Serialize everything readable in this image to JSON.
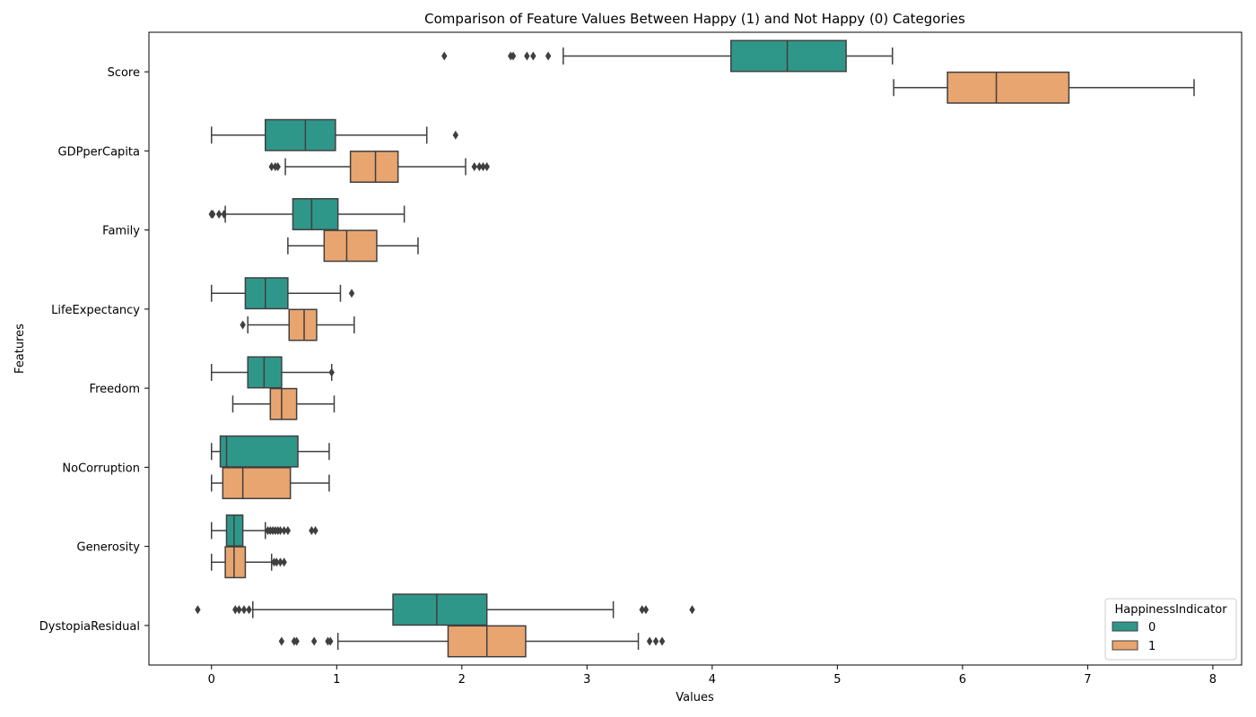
{
  "chart_data": {
    "type": "box",
    "orientation": "horizontal",
    "title": "Comparison of Feature Values Between Happy (1) and Not Happy (0) Categories",
    "xlabel": "Values",
    "ylabel": "Features",
    "xlim": [
      -0.5,
      8.23
    ],
    "xticks": [
      0,
      1,
      2,
      3,
      4,
      5,
      6,
      7,
      8
    ],
    "grid": false,
    "legend": {
      "title": "HappinessIndicator",
      "placement": "bottom-right",
      "entries": [
        "0",
        "1"
      ]
    },
    "colors": {
      "0": "#2f978a",
      "1": "#e9a56f",
      "line": "#3f3f3f"
    },
    "categories": [
      "Score",
      "GDPperCapita",
      "Family",
      "LifeExpectancy",
      "Freedom",
      "NoCorruption",
      "Generosity",
      "DystopiaResidual"
    ],
    "series": [
      {
        "name": "0",
        "boxes": [
          {
            "whislo": 2.81,
            "q1": 4.15,
            "med": 4.6,
            "q3": 5.07,
            "whishi": 5.44,
            "fliers": [
              1.86,
              2.39,
              2.41,
              2.52,
              2.57,
              2.69
            ]
          },
          {
            "whislo": 0.0,
            "q1": 0.43,
            "med": 0.75,
            "q3": 0.99,
            "whishi": 1.72,
            "fliers": [
              1.95
            ]
          },
          {
            "whislo": 0.11,
            "q1": 0.65,
            "med": 0.8,
            "q3": 1.01,
            "whishi": 1.54,
            "fliers": [
              0.0,
              0.01,
              0.06,
              0.1
            ]
          },
          {
            "whislo": 0.0,
            "q1": 0.27,
            "med": 0.43,
            "q3": 0.61,
            "whishi": 1.03,
            "fliers": [
              1.12
            ]
          },
          {
            "whislo": 0.0,
            "q1": 0.29,
            "med": 0.42,
            "q3": 0.56,
            "whishi": 0.96,
            "fliers": [
              0.96
            ]
          },
          {
            "whislo": 0.0,
            "q1": 0.07,
            "med": 0.12,
            "q3": 0.69,
            "whishi": 0.94,
            "fliers": []
          },
          {
            "whislo": 0.0,
            "q1": 0.12,
            "med": 0.18,
            "q3": 0.25,
            "whishi": 0.43,
            "fliers": [
              0.45,
              0.47,
              0.49,
              0.51,
              0.53,
              0.55,
              0.58,
              0.61,
              0.8,
              0.83
            ]
          },
          {
            "whislo": 0.33,
            "q1": 1.45,
            "med": 1.8,
            "q3": 2.2,
            "whishi": 3.21,
            "fliers": [
              -0.11,
              0.19,
              0.22,
              0.26,
              0.3,
              3.44,
              3.47,
              3.84
            ]
          }
        ]
      },
      {
        "name": "1",
        "boxes": [
          {
            "whislo": 5.45,
            "q1": 5.88,
            "med": 6.27,
            "q3": 6.85,
            "whishi": 7.85,
            "fliers": []
          },
          {
            "whislo": 0.59,
            "q1": 1.11,
            "med": 1.31,
            "q3": 1.49,
            "whishi": 2.03,
            "fliers": [
              0.48,
              0.51,
              0.53,
              2.1,
              2.14,
              2.17,
              2.2
            ]
          },
          {
            "whislo": 0.61,
            "q1": 0.9,
            "med": 1.08,
            "q3": 1.32,
            "whishi": 1.65,
            "fliers": []
          },
          {
            "whislo": 0.29,
            "q1": 0.62,
            "med": 0.74,
            "q3": 0.84,
            "whishi": 1.14,
            "fliers": [
              0.25
            ]
          },
          {
            "whislo": 0.17,
            "q1": 0.47,
            "med": 0.56,
            "q3": 0.68,
            "whishi": 0.98,
            "fliers": []
          },
          {
            "whislo": 0.0,
            "q1": 0.09,
            "med": 0.25,
            "q3": 0.63,
            "whishi": 0.94,
            "fliers": []
          },
          {
            "whislo": 0.0,
            "q1": 0.11,
            "med": 0.18,
            "q3": 0.27,
            "whishi": 0.48,
            "fliers": [
              0.5,
              0.52,
              0.55,
              0.58
            ]
          },
          {
            "whislo": 1.01,
            "q1": 1.89,
            "med": 2.2,
            "q3": 2.51,
            "whishi": 3.41,
            "fliers": [
              0.56,
              0.66,
              0.68,
              0.82,
              0.93,
              0.95,
              3.5,
              3.55,
              3.6
            ]
          }
        ]
      }
    ]
  }
}
